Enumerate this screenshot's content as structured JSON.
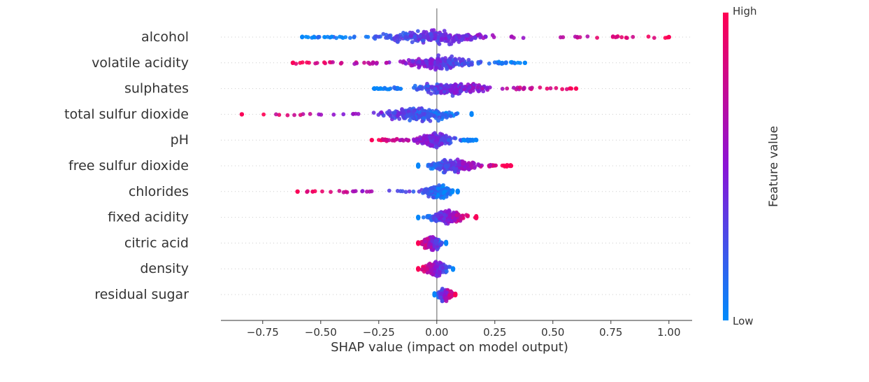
{
  "chart_data": {
    "type": "scatter",
    "subtype": "shap-beeswarm",
    "title": "",
    "xlabel": "SHAP value (impact on model output)",
    "ylabel": "",
    "xlim": [
      -0.93,
      1.1
    ],
    "x_ticks": [
      -0.75,
      -0.5,
      -0.25,
      0.0,
      0.25,
      0.5,
      0.75,
      1.0
    ],
    "x_tick_labels": [
      "−0.75",
      "−0.50",
      "−0.25",
      "0.00",
      "0.25",
      "0.50",
      "0.75",
      "1.00"
    ],
    "features": [
      {
        "name": "alcohol",
        "min": -0.58,
        "max": 1.0,
        "core": [
          -0.35,
          0.32
        ],
        "low_color_side": "negative"
      },
      {
        "name": "volatile acidity",
        "min": -0.62,
        "max": 0.38,
        "core": [
          -0.2,
          0.22
        ],
        "low_color_side": "positive"
      },
      {
        "name": "sulphates",
        "min": -0.27,
        "max": 0.6,
        "core": [
          -0.15,
          0.28
        ],
        "low_color_side": "negative"
      },
      {
        "name": "total sulfur dioxide",
        "min": -0.84,
        "max": 0.15,
        "core": [
          -0.3,
          0.15
        ],
        "low_color_side": "positive"
      },
      {
        "name": "pH",
        "min": -0.28,
        "max": 0.17,
        "core": [
          -0.12,
          0.1
        ],
        "low_color_side": "positive"
      },
      {
        "name": "free sulfur dioxide",
        "min": -0.08,
        "max": 0.32,
        "core": [
          -0.08,
          0.22
        ],
        "low_color_side": "negative"
      },
      {
        "name": "chlorides",
        "min": -0.6,
        "max": 0.09,
        "core": [
          -0.08,
          0.09
        ],
        "low_color_side": "positive"
      },
      {
        "name": "fixed acidity",
        "min": -0.08,
        "max": 0.17,
        "core": [
          -0.08,
          0.17
        ],
        "low_color_side": "negative"
      },
      {
        "name": "citric acid",
        "min": -0.08,
        "max": 0.04,
        "core": [
          -0.08,
          0.04
        ],
        "low_color_side": "positive"
      },
      {
        "name": "density",
        "min": -0.08,
        "max": 0.07,
        "core": [
          -0.08,
          0.07
        ],
        "low_color_side": "positive"
      },
      {
        "name": "residual sugar",
        "min": -0.01,
        "max": 0.08,
        "core": [
          -0.01,
          0.08
        ],
        "low_color_side": "negative"
      }
    ],
    "colorbar": {
      "title": "Feature value",
      "high_label": "High",
      "low_label": "Low",
      "high_color": "#ff0052",
      "mid_color": "#8a14d6",
      "low_color": "#008bfb"
    },
    "zero_line_color": "#999999",
    "grid": "dotted horizontal guides per feature"
  }
}
